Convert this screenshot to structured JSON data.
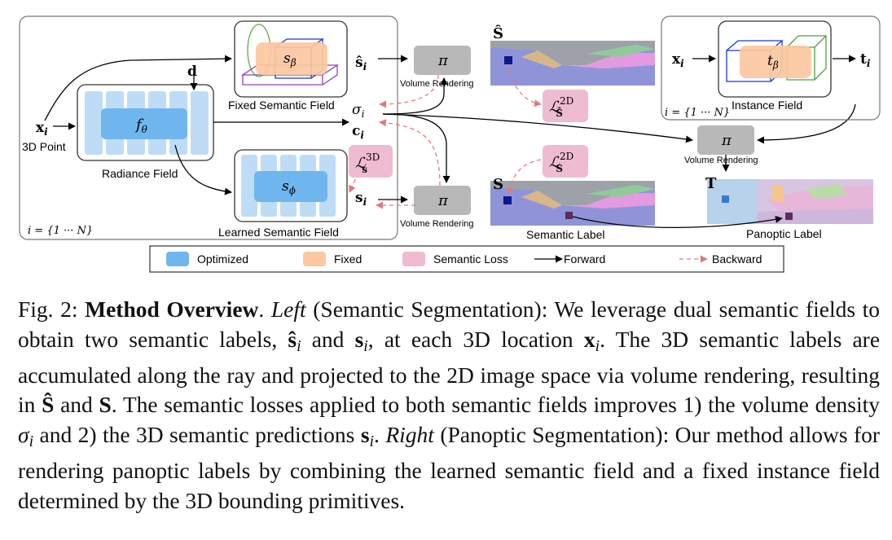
{
  "diagram": {
    "left_group": {
      "index_label": "i = {1 ··· N}",
      "input_x": "x",
      "input_x_sub": "i",
      "input_caption": "3D Point",
      "dir_label": "d",
      "radiance_field": {
        "symbol": "f",
        "symbol_sub": "θ",
        "caption": "Radiance Field"
      },
      "fixed_field": {
        "symbol": "s",
        "symbol_sub": "β",
        "caption": "Fixed Semantic Field"
      },
      "learned_field": {
        "symbol": "s",
        "symbol_sub": "ϕ",
        "caption": "Learned Semantic Field"
      },
      "outputs": {
        "s_hat": "ŝ",
        "s_hat_sub": "i",
        "sigma": "σ",
        "sigma_sub": "i",
        "c": "c",
        "c_sub": "i",
        "s": "s",
        "s_sub": "i"
      },
      "loss_3d": {
        "L": "ℒ",
        "sup": "3D",
        "sub": "s"
      }
    },
    "rendering": {
      "pi": "π",
      "label": "Volume Rendering"
    },
    "semantic_images": {
      "top_label": "Ŝ",
      "bottom_label": "S",
      "bottom_caption": "Semantic Label",
      "loss_top": {
        "L": "ℒ",
        "sup": "2D",
        "sub": "Ŝ"
      },
      "loss_bottom": {
        "L": "ℒ",
        "sup": "2D",
        "sub": "S"
      }
    },
    "right_group": {
      "index_label": "i = {1 ··· N}",
      "input_x": "x",
      "input_x_sub": "i",
      "instance_field": {
        "symbol": "t",
        "symbol_sub": "β",
        "caption": "Instance Field"
      },
      "output_t": "t",
      "output_t_sub": "i"
    },
    "panoptic": {
      "label": "T",
      "caption": "Panoptic Label"
    },
    "legend": [
      {
        "type": "swatch",
        "color": "#6fb6ef",
        "label": "Optimized"
      },
      {
        "type": "swatch",
        "color": "#fbc8a0",
        "label": "Fixed"
      },
      {
        "type": "swatch",
        "color": "#eebbd0",
        "label": "Semantic Loss"
      },
      {
        "type": "arrow-solid",
        "label": "Forward"
      },
      {
        "type": "arrow-dashed",
        "label": "Backward"
      }
    ],
    "colors": {
      "optimized_light": "#bfdcf7",
      "optimized_dark": "#6fb6ef",
      "fixed": "#fbc8a0",
      "semantic_loss": "#eebbd0",
      "render_box": "#b8b8b8",
      "backward_arrow": "#e07a80"
    }
  },
  "caption": {
    "fig_label": "Fig. 2:",
    "title": "Method Overview",
    "left_word": "Left",
    "left_paren": "(Semantic Segmentation):",
    "t1": "We leverage dual semantic fields to obtain two semantic labels,",
    "s_hat": "ŝ",
    "sub_i": "i",
    "and": "and",
    "s": "s",
    "t2": ", at each 3D location",
    "x": "x",
    "t3": ". The 3D semantic labels are accumulated along the ray and projected to the 2D image space via volume rendering, resulting in",
    "S_hat": "Ŝ",
    "S": "S",
    "t4": ". The semantic losses applied to both semantic fields improves 1) the volume density",
    "sigma": "σ",
    "t5": "and 2) the 3D semantic predictions",
    "t6": ".",
    "right_word": "Right",
    "right_paren": "(Panoptic Segmentation):",
    "t7": "Our method allows for rendering panoptic labels by combining the learned semantic field and a fixed instance field determined by the 3D bounding primitives."
  }
}
